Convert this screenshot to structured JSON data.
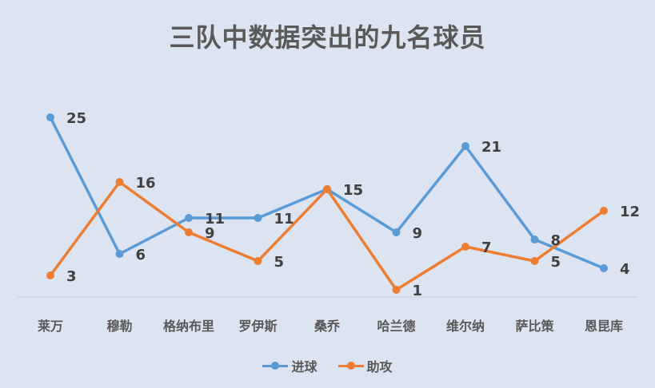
{
  "chart_data": {
    "type": "line",
    "title": "三队中数据突出的九名球员",
    "categories": [
      "莱万",
      "穆勒",
      "格纳布里",
      "罗伊斯",
      "桑乔",
      "哈兰德",
      "维尔纳",
      "萨比策",
      "恩昆库"
    ],
    "series": [
      {
        "name": "进球",
        "color": "#5b9bd5",
        "values": [
          25,
          6,
          11,
          11,
          15,
          9,
          21,
          8,
          4
        ]
      },
      {
        "name": "助攻",
        "color": "#ed7d31",
        "values": [
          3,
          16,
          9,
          5,
          15,
          1,
          7,
          5,
          12
        ]
      }
    ],
    "ylim": [
      0,
      27
    ],
    "grid": false,
    "legend_position": "bottom"
  }
}
